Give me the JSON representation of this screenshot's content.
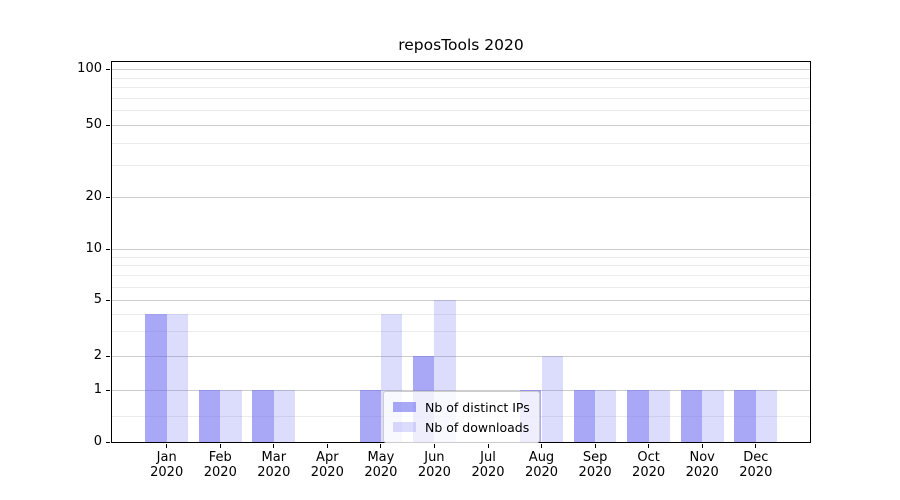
{
  "chart_data": {
    "type": "bar",
    "title": "reposTools 2020",
    "categories": [
      {
        "month": "Jan",
        "year": "2020"
      },
      {
        "month": "Feb",
        "year": "2020"
      },
      {
        "month": "Mar",
        "year": "2020"
      },
      {
        "month": "Apr",
        "year": "2020"
      },
      {
        "month": "May",
        "year": "2020"
      },
      {
        "month": "Jun",
        "year": "2020"
      },
      {
        "month": "Jul",
        "year": "2020"
      },
      {
        "month": "Aug",
        "year": "2020"
      },
      {
        "month": "Sep",
        "year": "2020"
      },
      {
        "month": "Oct",
        "year": "2020"
      },
      {
        "month": "Nov",
        "year": "2020"
      },
      {
        "month": "Dec",
        "year": "2020"
      }
    ],
    "series": [
      {
        "name": "Nb of distinct IPs",
        "color": "rgba(102,102,240,0.57)",
        "values": [
          4,
          1,
          1,
          0,
          1,
          2,
          0,
          1,
          1,
          1,
          1,
          1
        ]
      },
      {
        "name": "Nb of downloads",
        "color": "rgba(102,102,240,0.23)",
        "values": [
          4,
          1,
          1,
          0,
          4,
          5,
          0,
          2,
          1,
          1,
          1,
          1
        ]
      }
    ],
    "y_axis": {
      "ticks": [
        "100",
        "50",
        "20",
        "10",
        "5",
        "2",
        "1",
        "0"
      ],
      "minor_ticks": [
        0.5,
        3,
        4,
        6,
        7,
        8,
        9,
        30,
        40,
        60,
        70,
        80,
        90
      ],
      "scale": "log-like",
      "ylim": [
        0,
        110
      ],
      "grid": true
    },
    "legend": {
      "position": "lower-center",
      "entries": [
        "Nb of distinct IPs",
        "Nb of downloads"
      ]
    }
  }
}
